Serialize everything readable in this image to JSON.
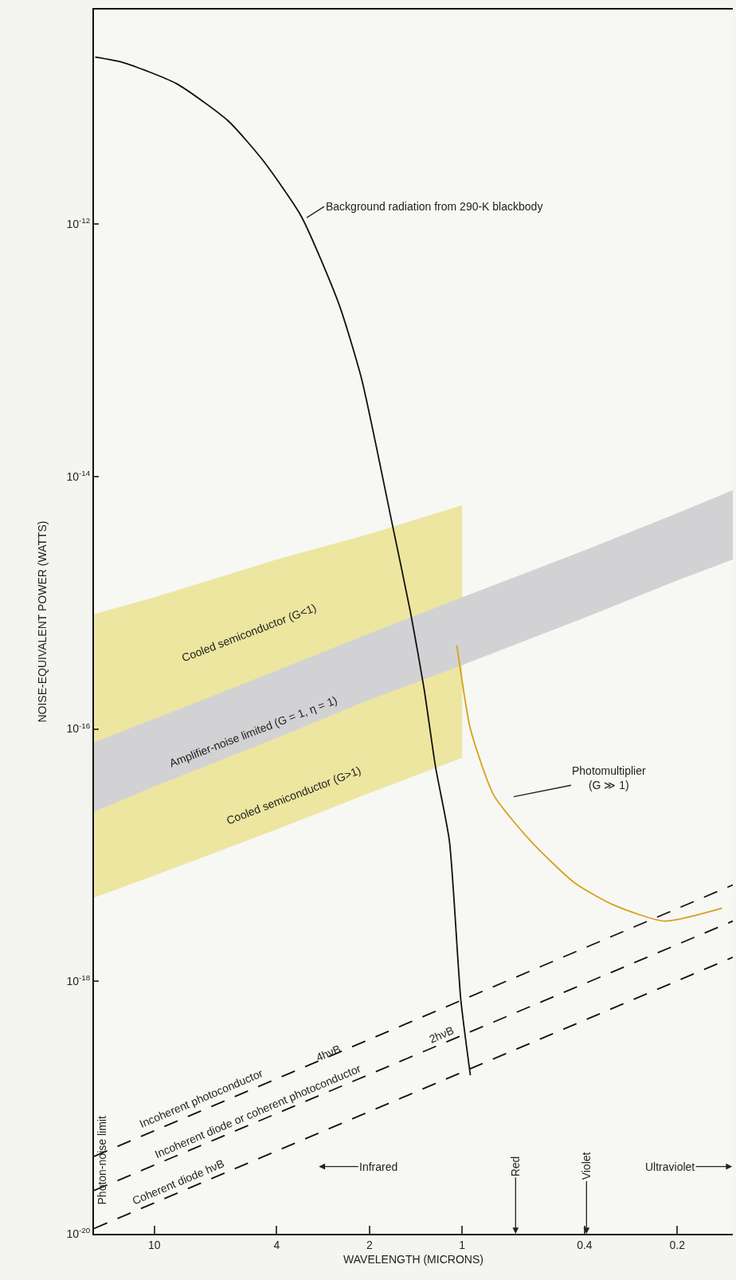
{
  "chart_data": {
    "type": "line",
    "xlabel": "WAVELENGTH (MICRONS)",
    "ylabel": "NOISE-EQUIVALENT POWER (WATTS)",
    "log": "xy",
    "grid": false,
    "marker": "none",
    "xlim": [
      15.7,
      0.132
    ],
    "xticks": [
      10,
      4,
      2,
      1,
      0.4,
      0.2
    ],
    "ylim": [
      1e-20,
      5e-11
    ],
    "yticks": [
      {
        "value": 1e-12,
        "label": "10$^{-12}$"
      },
      {
        "value": 1e-14,
        "label": "10$^{-14}$"
      },
      {
        "value": 1e-16,
        "label": "10$^{-16}$"
      },
      {
        "value": 1e-18,
        "label": "10$^{-18}$"
      },
      {
        "value": 1e-20,
        "label": "10$^{-20}$"
      }
    ],
    "series": [
      {
        "color": "#ece6a0",
        "x": [
          15.7,
          10,
          4,
          2,
          1.0
        ],
        "values": [
          null,
          null,
          null,
          null,
          null
        ],
        "lower": [
          4.6e-18,
          6.9e-18,
          1.6e-17,
          3.1e-17,
          5.9e-17
        ],
        "upper": [
          8.1e-16,
          1.1e-15,
          2.2e-15,
          3.5e-15,
          5.9e-15
        ]
      },
      {
        "color": "#d2d2d4",
        "x": [
          15.7,
          10,
          4,
          2,
          1,
          0.4,
          0.2,
          0.132
        ],
        "values": [
          null,
          null,
          null,
          null,
          null,
          null,
          null,
          null
        ],
        "lower": [
          2.2e-17,
          3.5e-17,
          8.5e-17,
          1.7e-16,
          3.2e-16,
          7.6e-16,
          1.5e-15,
          2.2e-15
        ],
        "upper": [
          7.8e-17,
          1.2e-16,
          2.9e-16,
          5.7e-16,
          1.1e-15,
          2.6e-15,
          5.1e-15,
          7.8e-15
        ]
      },
      {
        "color": "#111111",
        "line_style": "solid",
        "x": [
          15.56,
          12.6,
          8.5,
          5.77,
          4.44,
          3.33,
          2.51,
          2.12,
          1.69,
          1.47,
          1.33,
          1.22,
          1.1,
          1.01,
          0.94
        ],
        "values": [
          2.1e-11,
          1.9e-11,
          1.3e-11,
          6.6e-12,
          3.2e-12,
          1.15e-12,
          2.3e-13,
          5.9e-14,
          4.3e-15,
          8.3e-16,
          2.1e-16,
          5e-17,
          1.3e-17,
          7.2e-19,
          1.8e-19
        ]
      },
      {
        "color": "#d4a21c",
        "line_style": "solid",
        "x": [
          1.04,
          1.01,
          0.94,
          0.79,
          0.6,
          0.43,
          0.32,
          0.22,
          0.143
        ],
        "values": [
          4.6e-16,
          2.8e-16,
          1e-16,
          3e-17,
          1.3e-17,
          6e-18,
          4e-18,
          3e-18,
          3.8e-18
        ]
      },
      {
        "color": "#111111",
        "line_style": "dashed",
        "x": [
          15.7,
          0.132
        ],
        "values": [
          4.1e-20,
          5.8e-18
        ]
      },
      {
        "color": "#111111",
        "line_style": "dashed",
        "x": [
          15.7,
          0.132
        ],
        "values": [
          2.2e-20,
          3e-18
        ]
      },
      {
        "color": "#111111",
        "line_style": "dashed",
        "x": [
          15.7,
          0.132
        ],
        "values": [
          1.1e-20,
          1.55e-18
        ]
      }
    ],
    "annotations": [
      "Background radiation from 290-K blackbody",
      "Photomultiplier\n(G ≫ 1)",
      "Cooled semiconductor (G<1)",
      "Amplifier-noise limited (G = 1, η = 1)",
      "Cooled semiconductor (G>1)",
      "Incoherent photoconductor",
      "4hνB",
      "Incoherent diode or coherent photoconductor",
      "2hνB",
      "Coherent diode hνB",
      "Infrared",
      "Red",
      "Violet",
      "Ultraviolet",
      "Photon-noise limit"
    ]
  }
}
